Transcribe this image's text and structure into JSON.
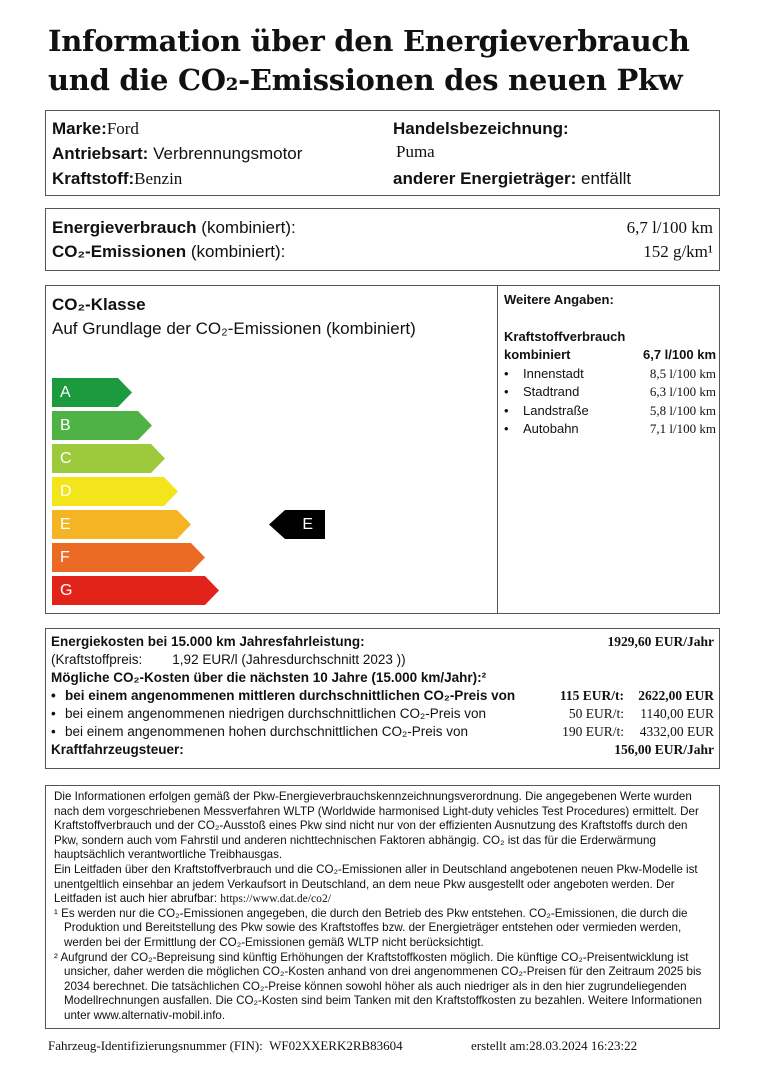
{
  "title": {
    "line1": "Information über den Energieverbrauch",
    "line2": "und die CO₂-Emissionen des neuen Pkw"
  },
  "vehicle": {
    "marke_label": "Marke:",
    "marke": "Ford",
    "antrieb_label": "Antriebsart:",
    "antrieb": "Verbrennungsmotor",
    "kraftstoff_label": "Kraftstoff:",
    "kraftstoff": "Benzin",
    "handel_label": "Handelsbezeichnung:",
    "handel": "Puma",
    "anderer_label": "anderer Energieträger:",
    "anderer": "entfällt"
  },
  "consumption": {
    "energie_label": "Energieverbrauch",
    "energie_suffix": "(kombiniert):",
    "energie_value": "6,7 l/100 km",
    "co2_label": "CO₂-Emissionen",
    "co2_suffix": "(kombiniert):",
    "co2_value": "152 g/km¹"
  },
  "co2class": {
    "title": "CO₂-Klasse",
    "subtitle": "Auf Grundlage der CO₂-Emissionen (kombiniert)",
    "classes": [
      {
        "label": "A",
        "color": "#1b9a3e"
      },
      {
        "label": "B",
        "color": "#4fb244"
      },
      {
        "label": "C",
        "color": "#9dca3c"
      },
      {
        "label": "D",
        "color": "#f3e41c"
      },
      {
        "label": "E",
        "color": "#f5b423"
      },
      {
        "label": "F",
        "color": "#ec6b24"
      },
      {
        "label": "G",
        "color": "#e2231a"
      }
    ],
    "current": "E"
  },
  "weitere": {
    "title": "Weitere Angaben:",
    "heading": "Kraftstoffverbrauch",
    "kombiniert_label": "kombiniert",
    "kombiniert_value": "6,7 l/100 km",
    "rows": [
      {
        "label": "Innenstadt",
        "value": "8,5 l/100 km"
      },
      {
        "label": "Stadtrand",
        "value": "6,3 l/100 km"
      },
      {
        "label": "Landstraße",
        "value": "5,8 l/100 km"
      },
      {
        "label": "Autobahn",
        "value": "7,1 l/100 km"
      }
    ]
  },
  "costs": {
    "energie_label": "Energiekosten bei 15.000 km Jahresfahrleistung:",
    "energie_value": "1929,60 EUR/Jahr",
    "preis_label": "(Kraftstoffpreis:",
    "preis_value": "1,92 EUR/l (Jahresdurchschnitt  2023 ))",
    "co2_heading": "Mögliche CO₂-Kosten über die nächsten 10 Jahre (15.000 km/Jahr):²",
    "rows": [
      {
        "text": "bei einem angenommenen mittleren durchschnittlichen CO₂-Preis von",
        "price": "115 EUR/t:",
        "value": "2622,00 EUR"
      },
      {
        "text": "bei einem angenommenen niedrigen durchschnittlichen CO₂-Preis von",
        "price": "50 EUR/t:",
        "value": "1140,00 EUR"
      },
      {
        "text": "bei einem angenommenen hohen durchschnittlichen CO₂-Preis von",
        "price": "190 EUR/t:",
        "value": "4332,00 EUR"
      }
    ],
    "steuer_label": "Kraftfahrzeugsteuer:",
    "steuer_value": "156,00 EUR/Jahr"
  },
  "notes": {
    "p1": "Die Informationen erfolgen gemäß der Pkw-Energieverbrauchskennzeichnungsverordnung. Die angegebenen Werte wurden nach dem vorgeschriebenen Messverfahren WLTP (Worldwide harmonised Light-duty vehicles Test Procedures) ermittelt. Der Kraftstoffverbrauch und der CO₂-Ausstoß eines Pkw sind nicht nur von der effizienten Ausnutzung des Kraftstoffs durch den Pkw, sondern auch vom Fahrstil und anderen nichttechnischen Faktoren abhängig. CO₂ ist das für die Erderwärmung hauptsächlich verantwortliche Treibhausgas.",
    "p2": "Ein Leitfaden über den Kraftstoffverbrauch und die CO₂-Emissionen aller in Deutschland angebotenen neuen Pkw-Modelle ist unentgeltlich einsehbar an jedem Verkaufsort in Deutschland, an dem neue Pkw ausgestellt oder angeboten werden. Der Leitfaden ist auch hier abrufbar:",
    "link": "https://www.dat.de/co2/",
    "fn1": "¹ Es werden nur die CO₂-Emissionen angegeben, die durch den Betrieb des Pkw entstehen. CO₂-Emissionen, die durch die Produktion und Bereitstellung des Pkw sowie des Kraftstoffes bzw. der Energieträger entstehen oder vermieden werden, werden bei der Ermittlung der CO₂-Emissionen gemäß WLTP nicht berücksichtigt.",
    "fn2": "² Aufgrund der CO₂-Bepreisung sind künftig Erhöhungen der Kraftstoffkosten möglich. Die künftige CO₂-Preisentwicklung ist unsicher, daher werden die möglichen CO₂-Kosten anhand von drei angenommenen CO₂-Preisen für den Zeitraum  2025  bis  2034  berechnet. Die tatsächlichen CO₂-Preise können sowohl höher als auch niedriger als in den hier zugrundeliegenden Modellrechnungen ausfallen. Die CO₂-Kosten sind beim Tanken mit den Kraftstoffkosten zu bezahlen. Weitere Informationen unter www.alternativ-mobil.info."
  },
  "footer": {
    "fin_label": "Fahrzeug-Identifizierungsnummer (FIN):",
    "fin": "WF02XXERK2RB83604",
    "erstellt_label": "erstellt am:",
    "erstellt": "28.03.2024 16:23:22"
  }
}
